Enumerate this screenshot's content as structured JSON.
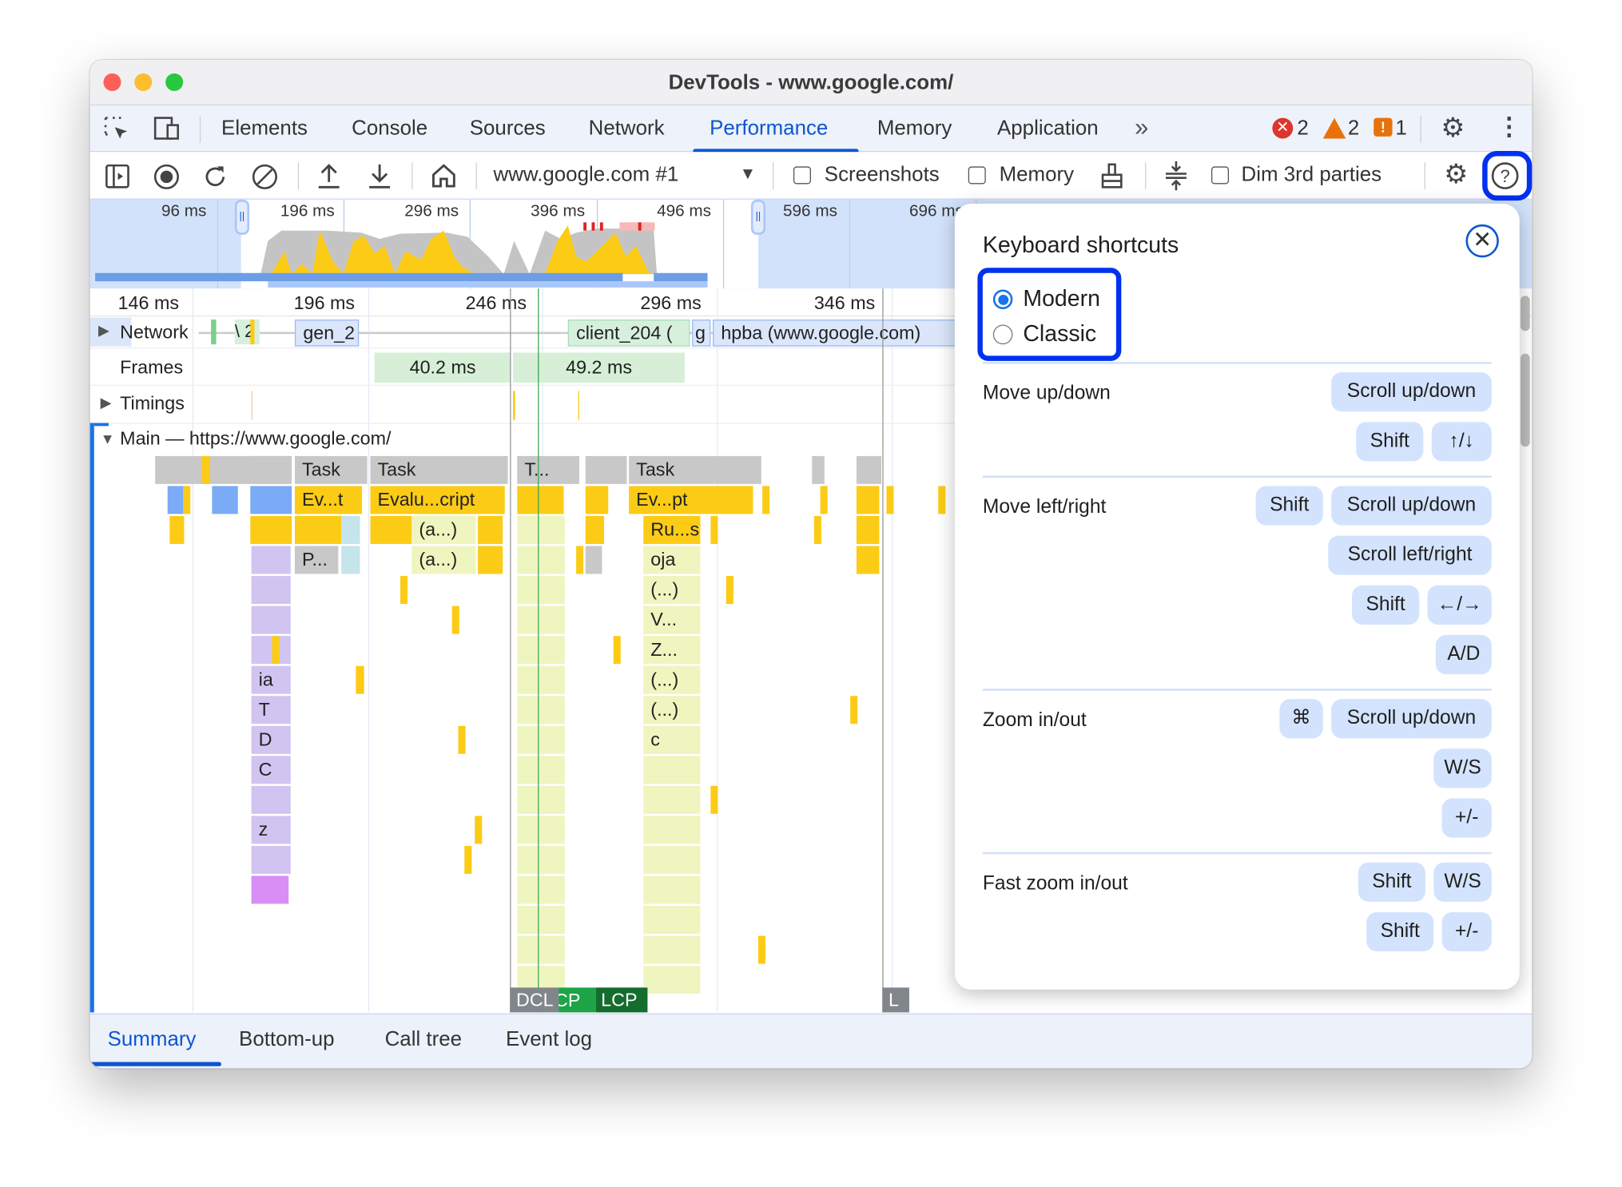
{
  "window": {
    "title": "DevTools - www.google.com/"
  },
  "tabs": [
    {
      "label": "Elements"
    },
    {
      "label": "Console"
    },
    {
      "label": "Sources"
    },
    {
      "label": "Network"
    },
    {
      "label": "Performance",
      "active": true
    },
    {
      "label": "Memory"
    },
    {
      "label": "Application"
    }
  ],
  "badges": {
    "errors": "2",
    "warnings": "2",
    "issues": "1"
  },
  "toolbar": {
    "recording_select": "www.google.com #1",
    "screenshots_label": "Screenshots",
    "memory_label": "Memory",
    "dim_label": "Dim 3rd parties",
    "screenshots_checked": false,
    "memory_checked": false,
    "dim_checked": false
  },
  "overview": {
    "ticks": [
      "96 ms",
      "196 ms",
      "296 ms",
      "396 ms",
      "496 ms",
      "596 ms",
      "696 ms"
    ]
  },
  "ruler": {
    "ticks": [
      "146 ms",
      "196 ms",
      "246 ms",
      "296 ms",
      "346 ms"
    ]
  },
  "tracks": {
    "network": {
      "label": "Network",
      "requests": [
        "\\ 2",
        "gen_2",
        "client_204 (",
        "g",
        "hpba (www.google.com)"
      ]
    },
    "frames": {
      "label": "Frames",
      "items": [
        "40.2 ms",
        "49.2 ms"
      ]
    },
    "timings": {
      "label": "Timings"
    },
    "main": {
      "label": "Main — https://www.google.com/"
    }
  },
  "flame": {
    "labels": [
      "Task",
      "Task",
      "T...",
      "Task",
      "Ev...t",
      "Evalu...cript",
      "Ev...pt",
      "(a...)",
      "Ru...s",
      "P...",
      "(a...)",
      "oja",
      "(...)",
      "V...",
      "Z...",
      "(...)",
      "(...)",
      "c",
      "ia",
      "T",
      "D",
      "C",
      "z"
    ]
  },
  "markers": [
    "DCL",
    "CP",
    "LCP",
    "L"
  ],
  "bottom_tabs": [
    {
      "label": "Summary",
      "active": true
    },
    {
      "label": "Bottom-up"
    },
    {
      "label": "Call tree"
    },
    {
      "label": "Event log"
    }
  ],
  "shortcuts_dialog": {
    "title": "Keyboard shortcuts",
    "modes": [
      {
        "label": "Modern",
        "selected": true
      },
      {
        "label": "Classic",
        "selected": false
      }
    ],
    "sections": [
      {
        "label": "Move up/down",
        "keys": [
          [
            "Scroll up/down"
          ],
          [
            "Shift",
            "↑/↓"
          ]
        ]
      },
      {
        "label": "Move left/right",
        "keys": [
          [
            "Shift",
            "Scroll up/down"
          ],
          [
            "Scroll left/right"
          ],
          [
            "Shift",
            "←/→"
          ],
          [
            "A/D"
          ]
        ]
      },
      {
        "label": "Zoom in/out",
        "keys": [
          [
            "⌘",
            "Scroll up/down"
          ],
          [
            "W/S"
          ],
          [
            "+/-"
          ]
        ]
      },
      {
        "label": "Fast zoom in/out",
        "keys": [
          [
            "Shift",
            "W/S"
          ],
          [
            "Shift",
            "+/-"
          ]
        ]
      }
    ]
  },
  "colors": {
    "accent": "#0b57d0",
    "highlight": "#0030f0",
    "task": "#c8c8c8",
    "script": "#fccb16",
    "parse": "#7baaf7",
    "render": "#d1c4f1",
    "dcl": "#80868b",
    "fcp": "#1ea446",
    "lcp": "#146c2e"
  }
}
